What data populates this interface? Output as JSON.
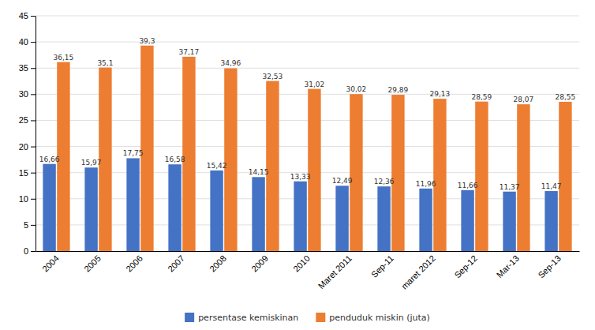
{
  "chart_data": {
    "type": "bar",
    "categories": [
      "2004",
      "2005",
      "2006",
      "2007",
      "2008",
      "2009",
      "2010",
      "Maret 2011",
      "Sep-11",
      "maret 2012",
      "Sep-12",
      "Mar-13",
      "Sep-13"
    ],
    "series": [
      {
        "name": "persentase kemiskinan",
        "color": "#4472C4",
        "values": [
          16.66,
          15.97,
          17.75,
          16.58,
          15.42,
          14.15,
          13.33,
          12.49,
          12.36,
          11.96,
          11.66,
          11.37,
          11.47
        ],
        "value_labels": [
          "16,66",
          "15,97",
          "17,75",
          "16,58",
          "15,42",
          "14,15",
          "13,33",
          "12,49",
          "12,36",
          "11,96",
          "11,66",
          "11,37",
          "11,47"
        ]
      },
      {
        "name": "penduduk miskin (juta)",
        "color": "#ED7D31",
        "values": [
          36.15,
          35.1,
          39.3,
          37.17,
          34.96,
          32.53,
          31.02,
          30.02,
          29.89,
          29.13,
          28.59,
          28.07,
          28.55
        ],
        "value_labels": [
          "36,15",
          "35,1",
          "39,3",
          "37,17",
          "34,96",
          "32,53",
          "31,02",
          "30,02",
          "29,89",
          "29,13",
          "28,59",
          "28,07",
          "28,55"
        ]
      }
    ],
    "ylim": [
      0,
      45
    ],
    "yticks": [
      0,
      5,
      10,
      15,
      20,
      25,
      30,
      35,
      40,
      45
    ],
    "grid": true,
    "legend": "bottom",
    "data_labels": true
  }
}
